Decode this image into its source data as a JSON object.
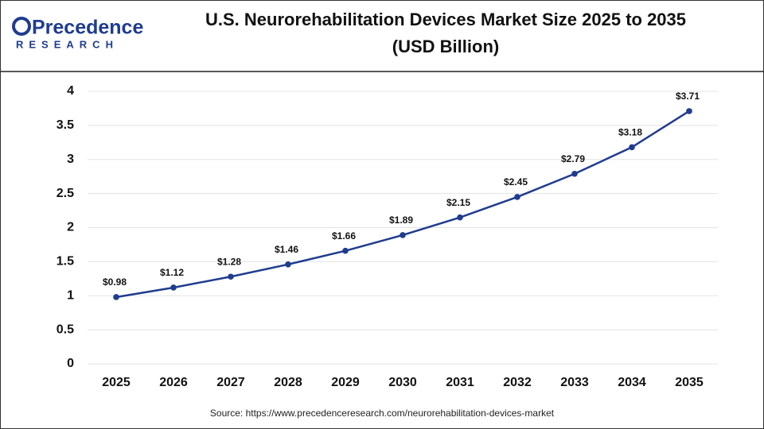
{
  "chart_data": {
    "type": "line",
    "brand": "Precedence",
    "brand_sub": "RESEARCH",
    "title": "U.S. Neurorehabilitation Devices Market Size 2025 to 2035",
    "subtitle": "(USD Billion)",
    "categories": [
      "2025",
      "2026",
      "2027",
      "2028",
      "2029",
      "2030",
      "2031",
      "2032",
      "2033",
      "2034",
      "2035"
    ],
    "series": [
      {
        "color": "#1f3c8f",
        "values": [
          0.98,
          1.12,
          1.28,
          1.46,
          1.66,
          1.89,
          2.15,
          2.45,
          2.79,
          3.18,
          3.71
        ],
        "value_labels": [
          "$0.98",
          "$1.12",
          "$1.28",
          "$1.46",
          "$1.66",
          "$1.89",
          "$2.15",
          "$2.45",
          "$2.79",
          "$3.18",
          "$3.71"
        ]
      }
    ],
    "ylim": [
      0,
      4
    ],
    "yticks": [
      0,
      0.5,
      1,
      1.5,
      2,
      2.5,
      3,
      3.5,
      4
    ],
    "grid": true,
    "source": "Source: https://www.precedenceresearch.com/neurorehabilitation-devices-market"
  }
}
